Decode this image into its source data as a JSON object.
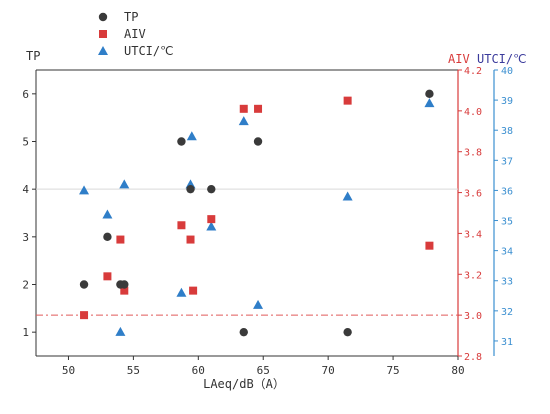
{
  "colors": {
    "tp": "#3a3a3a",
    "aiv": "#d83b3b",
    "utci": "#2f7ec8",
    "axis_left": "#333333",
    "axis_aiv": "#d83b3b",
    "axis_utci": "#3b8fd0",
    "ref_gray": "#d9d9d9",
    "ref_red": "#e05a5a"
  },
  "chart_data": {
    "type": "scatter",
    "title": "",
    "xlabel": "LAeq/dB（A）",
    "ylabel_left": "TP",
    "ylabel_aiv": "AIV",
    "ylabel_utci": "UTCI/℃",
    "xlim": [
      47.5,
      80
    ],
    "ylim_left": [
      0.5,
      6.5
    ],
    "ylim_aiv": [
      2.8,
      4.2
    ],
    "ylim_utci": [
      30.5,
      40
    ],
    "x_ticks": [
      "50",
      "55",
      "60",
      "65",
      "70",
      "75",
      "80"
    ],
    "y_ticks_left": [
      "1",
      "2",
      "3",
      "4",
      "5",
      "6"
    ],
    "y_ticks_aiv": [
      "2.8",
      "3.0",
      "3.2",
      "3.4",
      "3.6",
      "3.8",
      "4.0",
      "4.2"
    ],
    "y_ticks_utci": [
      "31",
      "32",
      "33",
      "34",
      "35",
      "36",
      "37",
      "38",
      "39",
      "40"
    ],
    "legend_position": "top-left",
    "reference_lines": [
      {
        "axis": "left",
        "y": 4,
        "style": "solid-gray"
      },
      {
        "axis": "aiv",
        "y": 3.0,
        "style": "dash-dot-red"
      }
    ],
    "series": [
      {
        "name": "TP",
        "marker": "circle",
        "axis": "left",
        "points": [
          {
            "x": 51.2,
            "y": 2
          },
          {
            "x": 53.0,
            "y": 3
          },
          {
            "x": 54.0,
            "y": 2
          },
          {
            "x": 54.3,
            "y": 2
          },
          {
            "x": 58.7,
            "y": 5
          },
          {
            "x": 59.4,
            "y": 4
          },
          {
            "x": 61.0,
            "y": 4
          },
          {
            "x": 63.5,
            "y": 1
          },
          {
            "x": 64.6,
            "y": 5
          },
          {
            "x": 71.5,
            "y": 1
          },
          {
            "x": 77.8,
            "y": 6
          }
        ]
      },
      {
        "name": "AIV",
        "marker": "square",
        "axis": "aiv",
        "points": [
          {
            "x": 51.2,
            "y": 3.0
          },
          {
            "x": 53.0,
            "y": 3.19
          },
          {
            "x": 54.0,
            "y": 3.37
          },
          {
            "x": 54.3,
            "y": 3.12
          },
          {
            "x": 58.7,
            "y": 3.44
          },
          {
            "x": 59.4,
            "y": 3.37
          },
          {
            "x": 59.6,
            "y": 3.12
          },
          {
            "x": 61.0,
            "y": 3.47
          },
          {
            "x": 63.5,
            "y": 4.01
          },
          {
            "x": 64.6,
            "y": 4.01
          },
          {
            "x": 71.5,
            "y": 4.05
          },
          {
            "x": 77.8,
            "y": 3.34
          }
        ]
      },
      {
        "name": "UTCI/℃",
        "marker": "triangle",
        "axis": "utci",
        "points": [
          {
            "x": 51.2,
            "y": 36.0
          },
          {
            "x": 53.0,
            "y": 35.2
          },
          {
            "x": 54.0,
            "y": 31.3
          },
          {
            "x": 54.3,
            "y": 36.2
          },
          {
            "x": 58.7,
            "y": 32.6
          },
          {
            "x": 59.4,
            "y": 36.2
          },
          {
            "x": 59.5,
            "y": 37.8
          },
          {
            "x": 61.0,
            "y": 34.8
          },
          {
            "x": 63.5,
            "y": 38.3
          },
          {
            "x": 64.6,
            "y": 32.2
          },
          {
            "x": 71.5,
            "y": 35.8
          },
          {
            "x": 77.8,
            "y": 38.9
          }
        ]
      }
    ]
  }
}
